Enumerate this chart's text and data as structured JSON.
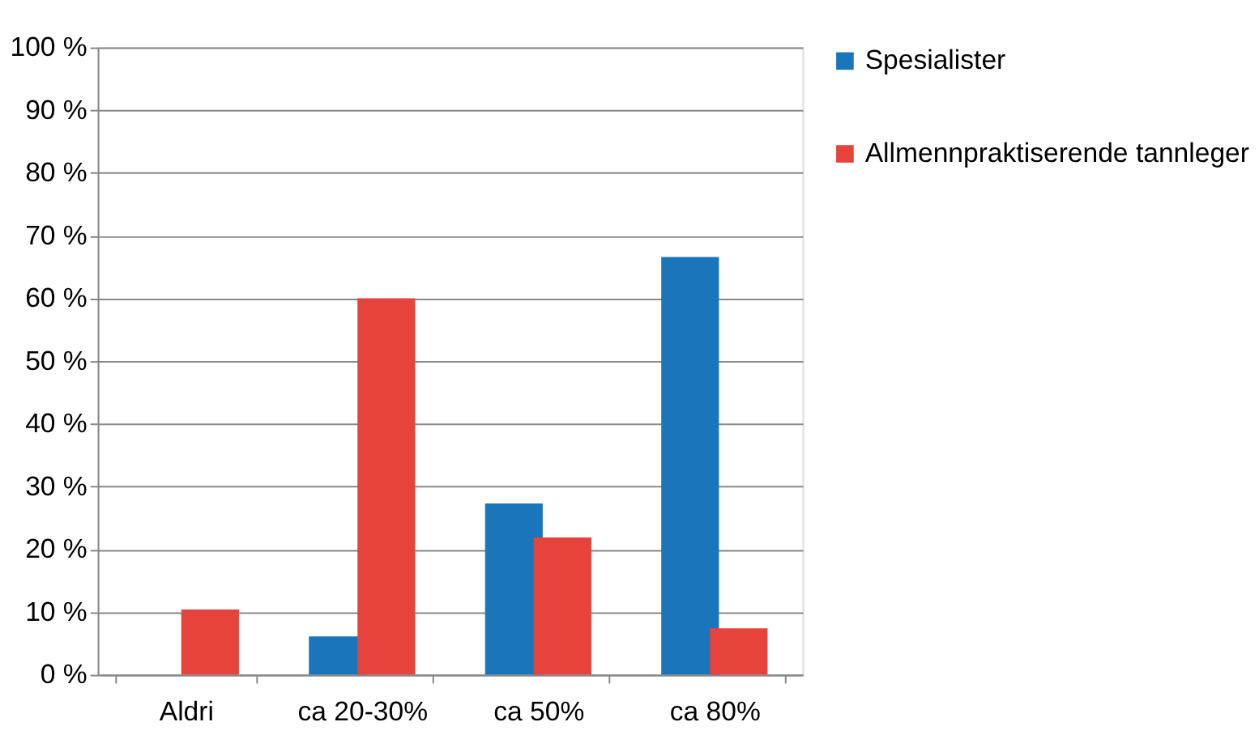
{
  "chart_data": {
    "type": "bar",
    "categories": [
      "Aldri",
      "ca 20-30%",
      "ca 50%",
      "ca 80%"
    ],
    "series": [
      {
        "name": "Spesialister",
        "color": "#1b75bb",
        "values": [
          0,
          6.1,
          27.3,
          66.6
        ]
      },
      {
        "name": "Allmennpraktiserende tannleger",
        "color": "#e5433b",
        "values": [
          10.4,
          60,
          21.9,
          7.4
        ]
      }
    ],
    "ylim": [
      0,
      100
    ],
    "yticks": [
      {
        "value": 0,
        "label": "0 %"
      },
      {
        "value": 10,
        "label": "10 %"
      },
      {
        "value": 20,
        "label": "20 %"
      },
      {
        "value": 30,
        "label": "30 %"
      },
      {
        "value": 40,
        "label": "40 %"
      },
      {
        "value": 50,
        "label": "50 %"
      },
      {
        "value": 60,
        "label": "60 %"
      },
      {
        "value": 70,
        "label": "70 %"
      },
      {
        "value": 80,
        "label": "80 %"
      },
      {
        "value": 90,
        "label": "90 %"
      },
      {
        "value": 100,
        "label": "100 %"
      }
    ],
    "grid": "y",
    "legend": "right"
  }
}
